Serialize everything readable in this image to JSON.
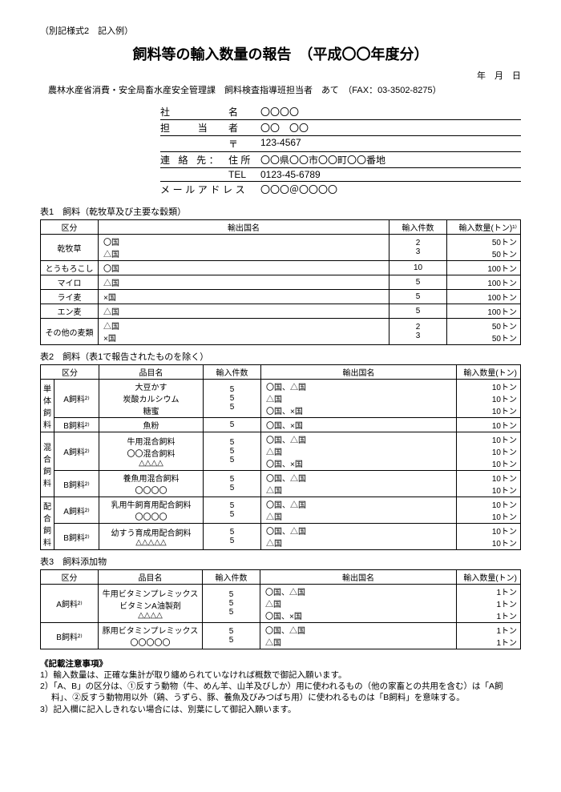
{
  "form_note": "（別記様式2　記入例）",
  "title": "飼料等の輸入数量の報告　（平成〇〇年度分）",
  "date_line": "年　月　日",
  "addressee": "農林水産省消費・安全局畜水産安全管理課　飼料検査指導班担当者　あて　（FAX：03-3502-8275）",
  "info": {
    "company_lbl": "社",
    "company_sub": "名",
    "company_val": "〇〇〇〇",
    "person_lbl": "担　　当",
    "person_sub": "者",
    "person_val": "〇〇　〇〇",
    "postal_lbl": "",
    "postal_sub": "〒",
    "postal_val": "123-4567",
    "contact_lbl": "連 絡 先：",
    "contact_sub": "住 所",
    "contact_val": "〇〇県〇〇市〇〇町〇〇番地",
    "tel_lbl": "",
    "tel_sub": "TEL",
    "tel_val": "0123-45-6789",
    "mail_lbl": "メールアドレス",
    "mail_val": "〇〇〇＠〇〇〇〇"
  },
  "t1_caption": "表1　飼料（乾牧草及び主要な穀類）",
  "t1_headers": {
    "cat": "区分",
    "country": "輸出国名",
    "num": "輸入件数",
    "qty": "輸入数量(トン)¹⁾"
  },
  "t1_rows": [
    {
      "cat": "乾牧草",
      "country": "〇国\n△国",
      "num": "2\n3",
      "qty": "50トン\n50トン"
    },
    {
      "cat": "とうもろこし",
      "country": "〇国",
      "num": "10",
      "qty": "100トン"
    },
    {
      "cat": "マイロ",
      "country": "△国",
      "num": "5",
      "qty": "100トン"
    },
    {
      "cat": "ライ麦",
      "country": "×国",
      "num": "5",
      "qty": "100トン"
    },
    {
      "cat": "エン麦",
      "country": "△国",
      "num": "5",
      "qty": "100トン"
    },
    {
      "cat": "その他の麦類",
      "country": "△国\n×国",
      "num": "2\n3",
      "qty": "50トン\n50トン"
    }
  ],
  "t2_caption": "表2　飼料（表1で報告されたものを除く）",
  "t2_headers": {
    "cat": "区分",
    "item": "品目名",
    "num": "輸入件数",
    "country": "輸出国名",
    "qty": "輸入数量(トン)"
  },
  "t2_groups": [
    {
      "v": "単体飼料",
      "rows": [
        {
          "sub": "A飼料²⁾",
          "item": "大豆かす\n炭酸カルシウム\n糖蜜",
          "num": "5\n5\n5",
          "country": "〇国、△国\n△国\n〇国、×国",
          "qty": "10トン\n10トン\n10トン"
        },
        {
          "sub": "B飼料²⁾",
          "item": "魚粉",
          "num": "5",
          "country": "〇国、×国",
          "qty": "10トン"
        }
      ]
    },
    {
      "v": "混合飼料",
      "rows": [
        {
          "sub": "A飼料²⁾",
          "item": "牛用混合飼料\n〇〇混合飼料\n△△△△",
          "num": "5\n5\n5",
          "country": "〇国、△国\n△国\n〇国、×国",
          "qty": "10トン\n10トン\n10トン"
        },
        {
          "sub": "B飼料²⁾",
          "item": "養魚用混合飼料\n〇〇〇〇",
          "num": "5\n5",
          "country": "〇国、△国\n△国",
          "qty": "10トン\n10トン"
        }
      ]
    },
    {
      "v": "配合飼料",
      "rows": [
        {
          "sub": "A飼料²⁾",
          "item": "乳用牛飼育用配合飼料\n〇〇〇〇",
          "num": "5\n5",
          "country": "〇国、△国\n△国",
          "qty": "10トン\n10トン"
        },
        {
          "sub": "B飼料²⁾",
          "item": "幼すう育成用配合飼料\n△△△△△",
          "num": "5\n5",
          "country": "〇国、△国\n△国",
          "qty": "10トン\n10トン"
        }
      ]
    }
  ],
  "t3_caption": "表3　飼料添加物",
  "t3_headers": {
    "cat": "区分",
    "item": "品目名",
    "num": "輸入件数",
    "country": "輸出国名",
    "qty": "輸入数量(トン)"
  },
  "t3_rows": [
    {
      "sub": "A飼料²⁾",
      "item": "牛用ビタミンプレミックス\nビタミンA油製剤\n△△△△",
      "num": "5\n5\n5",
      "country": "〇国、△国\n△国\n〇国、×国",
      "qty": "1トン\n1トン\n1トン"
    },
    {
      "sub": "B飼料²⁾",
      "item": "豚用ビタミンプレミックス\n〇〇〇〇〇",
      "num": "5\n5",
      "country": "〇国、△国\n△国",
      "qty": "1トン\n1トン"
    }
  ],
  "notes_title": "《記載注意事項》",
  "notes": [
    "1）輸入数量は、正確な集計が取り纏められていなければ概数で御記入願います。",
    "2）「A、B」の区分は、①反すう動物（牛、めん羊、山羊及びしか）用に使われるもの（他の家畜との共用を含む）は「A飼料」、②反すう動物用以外（鶏、うずら、豚、養魚及びみつばち用）に使われるものは「B飼料」を意味する。",
    "3）記入欄に記入しきれない場合には、別葉にして御記入願います。"
  ]
}
